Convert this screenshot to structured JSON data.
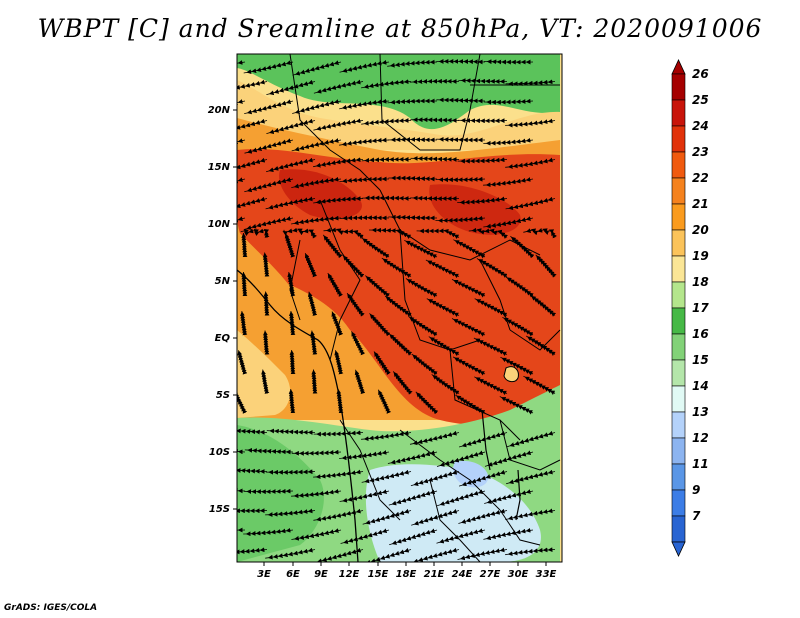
{
  "title": "WBPT [C] and Sreamline at 850hPa, VT: 2020091006",
  "credit": "GrADS: IGES/COLA",
  "lat_labels": [
    "20N",
    "15N",
    "10N",
    "5N",
    "EQ",
    "5S",
    "10S",
    "15S"
  ],
  "lon_labels": [
    "3E",
    "6E",
    "9E",
    "12E",
    "15E",
    "18E",
    "21E",
    "24E",
    "27E",
    "30E",
    "33E"
  ],
  "colorbar": {
    "levels": [
      "26",
      "25",
      "24",
      "23",
      "22",
      "21",
      "20",
      "19",
      "18",
      "17",
      "16",
      "15",
      "14",
      "13",
      "12",
      "11",
      "9",
      "7"
    ],
    "colors": [
      "#a50000",
      "#c8140a",
      "#e1320a",
      "#f05a0f",
      "#f5821e",
      "#fa9b1e",
      "#fbc35a",
      "#fbe696",
      "#b4e68c",
      "#46b946",
      "#82d278",
      "#b4e6aa",
      "#e1faf5",
      "#b4d2fa",
      "#8cb4f0",
      "#5a96e6",
      "#3c7de6",
      "#2864d2"
    ]
  },
  "regions": [
    {
      "name": "green-north-region",
      "color": "#5bc35b"
    },
    {
      "name": "warm-band-north",
      "color": "#fbd27a"
    },
    {
      "name": "hot-core-region",
      "color": "#e4461a"
    },
    {
      "name": "orange-west-region",
      "color": "#f5a032"
    },
    {
      "name": "green-south-region",
      "color": "#8fd982"
    },
    {
      "name": "cool-south-region",
      "color": "#cfeaf5"
    }
  ]
}
